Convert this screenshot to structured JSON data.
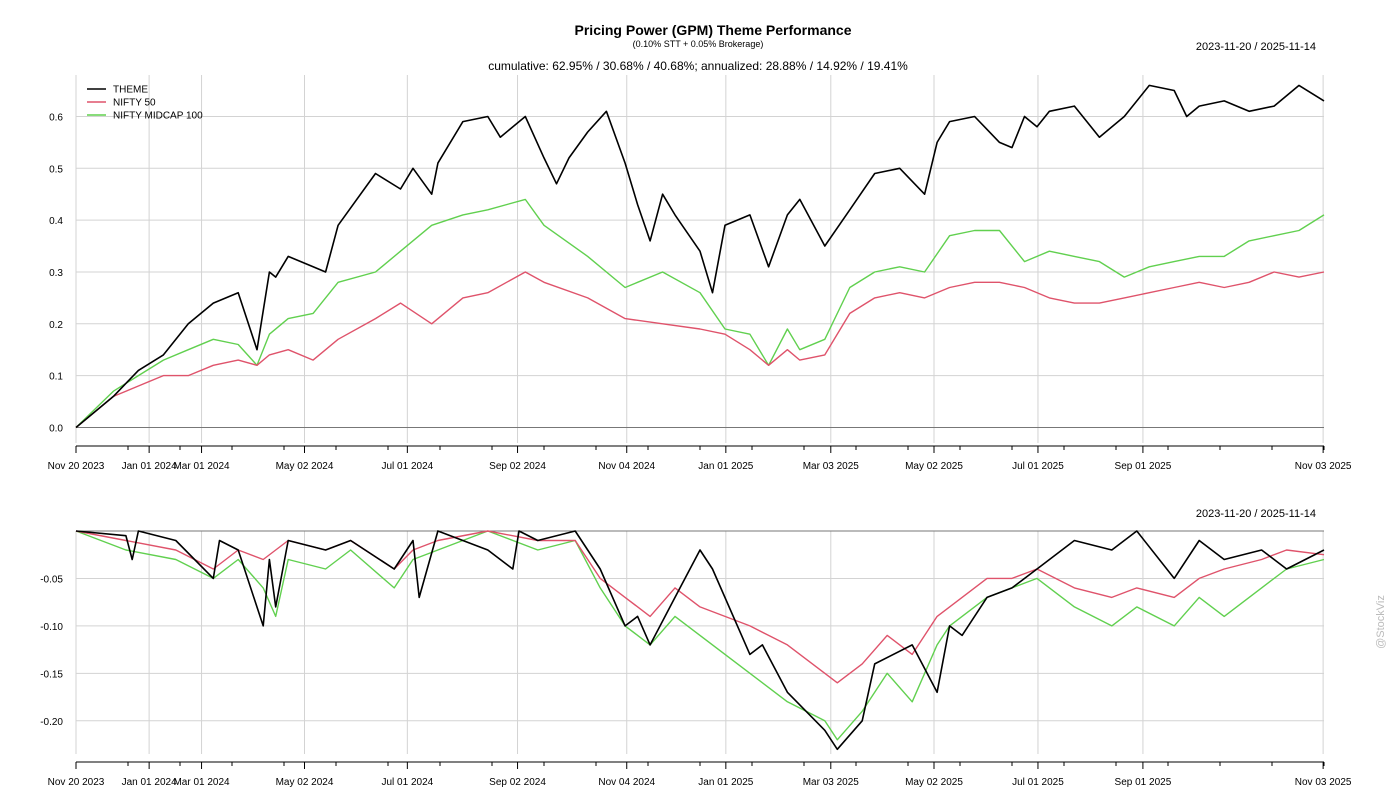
{
  "chart_data": [
    {
      "type": "line",
      "title": "Pricing Power (GPM) Theme Performance",
      "subtitle": "(0.10% STT + 0.05% Brokerage)",
      "stats": "cumulative: 62.95% / 30.68% / 40.68%; annualized: 28.88% / 14.92% / 19.41%",
      "date_range": "2023-11-20 / 2025-11-14",
      "x_ticks": [
        "Nov 20 2023",
        "Jan 01 2024",
        "Mar 01 2024",
        "May 02 2024",
        "Jul 01 2024",
        "Sep 02 2024",
        "Nov 04 2024",
        "Jan 01 2025",
        "Mar 03 2025",
        "May 02 2025",
        "Jul 01 2025",
        "Sep 01 2025",
        "Nov 03 2025"
      ],
      "x_tick_pos": [
        0,
        0.0586,
        0.1006,
        0.1831,
        0.2655,
        0.3538,
        0.4413,
        0.5207,
        0.6048,
        0.6875,
        0.7708,
        0.8549,
        0.9993
      ],
      "ylim": [
        -0.03,
        0.68
      ],
      "y_ticks": [
        0.0,
        0.1,
        0.2,
        0.3,
        0.4,
        0.5,
        0.6
      ],
      "y_tick_labels": [
        "0.0",
        "0.1",
        "0.2",
        "0.3",
        "0.4",
        "0.5",
        "0.6"
      ],
      "legend_position": "top-left",
      "series": [
        {
          "name": "THEME",
          "color": "#000000",
          "x": [
            0,
            0.03,
            0.05,
            0.07,
            0.09,
            0.11,
            0.13,
            0.145,
            0.155,
            0.16,
            0.17,
            0.19,
            0.2,
            0.21,
            0.24,
            0.26,
            0.27,
            0.285,
            0.29,
            0.31,
            0.33,
            0.34,
            0.36,
            0.375,
            0.385,
            0.395,
            0.41,
            0.425,
            0.44,
            0.45,
            0.46,
            0.47,
            0.48,
            0.5,
            0.51,
            0.52,
            0.54,
            0.555,
            0.57,
            0.58,
            0.6,
            0.62,
            0.64,
            0.66,
            0.68,
            0.69,
            0.7,
            0.72,
            0.74,
            0.75,
            0.76,
            0.77,
            0.78,
            0.8,
            0.82,
            0.84,
            0.86,
            0.88,
            0.89,
            0.9,
            0.92,
            0.94,
            0.96,
            0.98,
            1.0
          ],
          "values": [
            0,
            0.06,
            0.11,
            0.14,
            0.2,
            0.24,
            0.26,
            0.15,
            0.3,
            0.29,
            0.33,
            0.31,
            0.3,
            0.39,
            0.49,
            0.46,
            0.5,
            0.45,
            0.51,
            0.59,
            0.6,
            0.56,
            0.6,
            0.52,
            0.47,
            0.52,
            0.57,
            0.61,
            0.51,
            0.43,
            0.36,
            0.45,
            0.41,
            0.34,
            0.26,
            0.39,
            0.41,
            0.31,
            0.41,
            0.44,
            0.35,
            0.42,
            0.49,
            0.5,
            0.45,
            0.55,
            0.59,
            0.6,
            0.55,
            0.54,
            0.6,
            0.58,
            0.61,
            0.62,
            0.56,
            0.6,
            0.66,
            0.65,
            0.6,
            0.62,
            0.63,
            0.61,
            0.62,
            0.66,
            0.63
          ]
        },
        {
          "name": "NIFTY 50",
          "color": "#DF536B",
          "x": [
            0,
            0.03,
            0.05,
            0.07,
            0.09,
            0.11,
            0.13,
            0.145,
            0.155,
            0.17,
            0.19,
            0.21,
            0.24,
            0.26,
            0.285,
            0.31,
            0.33,
            0.36,
            0.375,
            0.41,
            0.44,
            0.47,
            0.5,
            0.52,
            0.54,
            0.555,
            0.57,
            0.58,
            0.6,
            0.62,
            0.64,
            0.66,
            0.68,
            0.7,
            0.72,
            0.74,
            0.76,
            0.78,
            0.8,
            0.82,
            0.84,
            0.86,
            0.88,
            0.9,
            0.92,
            0.94,
            0.96,
            0.98,
            1.0
          ],
          "values": [
            0,
            0.06,
            0.08,
            0.1,
            0.1,
            0.12,
            0.13,
            0.12,
            0.14,
            0.15,
            0.13,
            0.17,
            0.21,
            0.24,
            0.2,
            0.25,
            0.26,
            0.3,
            0.28,
            0.25,
            0.21,
            0.2,
            0.19,
            0.18,
            0.15,
            0.12,
            0.15,
            0.13,
            0.14,
            0.22,
            0.25,
            0.26,
            0.25,
            0.27,
            0.28,
            0.28,
            0.27,
            0.25,
            0.24,
            0.24,
            0.25,
            0.26,
            0.27,
            0.28,
            0.27,
            0.28,
            0.3,
            0.29,
            0.3
          ]
        },
        {
          "name": "NIFTY MIDCAP 100",
          "color": "#61D04F",
          "x": [
            0,
            0.03,
            0.05,
            0.07,
            0.09,
            0.11,
            0.13,
            0.145,
            0.155,
            0.17,
            0.19,
            0.21,
            0.24,
            0.26,
            0.285,
            0.31,
            0.33,
            0.36,
            0.375,
            0.41,
            0.44,
            0.45,
            0.47,
            0.5,
            0.52,
            0.54,
            0.555,
            0.57,
            0.58,
            0.6,
            0.62,
            0.64,
            0.66,
            0.68,
            0.7,
            0.72,
            0.74,
            0.76,
            0.78,
            0.8,
            0.82,
            0.84,
            0.86,
            0.88,
            0.9,
            0.92,
            0.94,
            0.96,
            0.98,
            1.0
          ],
          "values": [
            0,
            0.07,
            0.1,
            0.13,
            0.15,
            0.17,
            0.16,
            0.12,
            0.18,
            0.21,
            0.22,
            0.28,
            0.3,
            0.34,
            0.39,
            0.41,
            0.42,
            0.44,
            0.39,
            0.33,
            0.27,
            0.28,
            0.3,
            0.26,
            0.19,
            0.18,
            0.12,
            0.19,
            0.15,
            0.17,
            0.27,
            0.3,
            0.31,
            0.3,
            0.37,
            0.38,
            0.38,
            0.32,
            0.34,
            0.33,
            0.32,
            0.29,
            0.31,
            0.32,
            0.33,
            0.33,
            0.36,
            0.37,
            0.38,
            0.41
          ]
        }
      ]
    },
    {
      "type": "line",
      "title": "",
      "date_range": "2023-11-20 / 2025-11-14",
      "x_ticks": [
        "Nov 20 2023",
        "Jan 01 2024",
        "Mar 01 2024",
        "May 02 2024",
        "Jul 01 2024",
        "Sep 02 2024",
        "Nov 04 2024",
        "Jan 01 2025",
        "Mar 03 2025",
        "May 02 2025",
        "Jul 01 2025",
        "Sep 01 2025",
        "Nov 03 2025"
      ],
      "x_tick_pos": [
        0,
        0.0586,
        0.1006,
        0.1831,
        0.2655,
        0.3538,
        0.4413,
        0.5207,
        0.6048,
        0.6875,
        0.7708,
        0.8549,
        0.9993
      ],
      "ylim": [
        -0.235,
        0.0
      ],
      "y_ticks": [
        -0.2,
        -0.15,
        -0.1,
        -0.05
      ],
      "y_tick_labels": [
        "-0.20",
        "-0.15",
        "-0.10",
        "-0.05"
      ],
      "series": [
        {
          "name": "THEME",
          "color": "#000000",
          "x": [
            0,
            0.04,
            0.045,
            0.05,
            0.08,
            0.11,
            0.115,
            0.13,
            0.15,
            0.155,
            0.16,
            0.17,
            0.2,
            0.22,
            0.255,
            0.27,
            0.275,
            0.29,
            0.33,
            0.35,
            0.355,
            0.37,
            0.4,
            0.42,
            0.44,
            0.45,
            0.46,
            0.48,
            0.5,
            0.51,
            0.54,
            0.55,
            0.57,
            0.6,
            0.61,
            0.63,
            0.64,
            0.67,
            0.69,
            0.7,
            0.71,
            0.73,
            0.75,
            0.77,
            0.8,
            0.83,
            0.85,
            0.88,
            0.9,
            0.92,
            0.95,
            0.97,
            1.0
          ],
          "values": [
            0,
            -0.005,
            -0.03,
            0,
            -0.01,
            -0.05,
            -0.01,
            -0.02,
            -0.1,
            -0.03,
            -0.08,
            -0.01,
            -0.02,
            -0.01,
            -0.04,
            -0.01,
            -0.07,
            0,
            -0.02,
            -0.04,
            0,
            -0.01,
            0,
            -0.04,
            -0.1,
            -0.09,
            -0.12,
            -0.07,
            -0.02,
            -0.04,
            -0.13,
            -0.12,
            -0.17,
            -0.21,
            -0.23,
            -0.2,
            -0.14,
            -0.12,
            -0.17,
            -0.1,
            -0.11,
            -0.07,
            -0.06,
            -0.04,
            -0.01,
            -0.02,
            0,
            -0.05,
            -0.01,
            -0.03,
            -0.02,
            -0.04,
            -0.02
          ]
        },
        {
          "name": "NIFTY 50",
          "color": "#DF536B",
          "x": [
            0,
            0.04,
            0.08,
            0.11,
            0.13,
            0.15,
            0.17,
            0.2,
            0.22,
            0.255,
            0.27,
            0.29,
            0.33,
            0.37,
            0.4,
            0.42,
            0.44,
            0.46,
            0.48,
            0.5,
            0.54,
            0.57,
            0.6,
            0.61,
            0.63,
            0.65,
            0.67,
            0.69,
            0.7,
            0.73,
            0.75,
            0.77,
            0.8,
            0.83,
            0.85,
            0.88,
            0.9,
            0.92,
            0.95,
            0.97,
            1.0
          ],
          "values": [
            0,
            -0.01,
            -0.02,
            -0.04,
            -0.02,
            -0.03,
            -0.01,
            -0.02,
            -0.01,
            -0.04,
            -0.02,
            -0.01,
            0,
            -0.01,
            -0.01,
            -0.05,
            -0.07,
            -0.09,
            -0.06,
            -0.08,
            -0.1,
            -0.12,
            -0.15,
            -0.16,
            -0.14,
            -0.11,
            -0.13,
            -0.09,
            -0.08,
            -0.05,
            -0.05,
            -0.04,
            -0.06,
            -0.07,
            -0.06,
            -0.07,
            -0.05,
            -0.04,
            -0.03,
            -0.02,
            -0.025
          ]
        },
        {
          "name": "NIFTY MIDCAP 100",
          "color": "#61D04F",
          "x": [
            0,
            0.04,
            0.08,
            0.11,
            0.13,
            0.15,
            0.16,
            0.17,
            0.2,
            0.22,
            0.255,
            0.27,
            0.29,
            0.33,
            0.37,
            0.4,
            0.42,
            0.44,
            0.46,
            0.48,
            0.5,
            0.54,
            0.57,
            0.6,
            0.61,
            0.63,
            0.65,
            0.67,
            0.69,
            0.7,
            0.73,
            0.75,
            0.77,
            0.8,
            0.83,
            0.85,
            0.88,
            0.9,
            0.92,
            0.95,
            0.97,
            1.0
          ],
          "values": [
            0,
            -0.02,
            -0.03,
            -0.05,
            -0.03,
            -0.06,
            -0.09,
            -0.03,
            -0.04,
            -0.02,
            -0.06,
            -0.03,
            -0.02,
            0,
            -0.02,
            -0.01,
            -0.06,
            -0.1,
            -0.12,
            -0.09,
            -0.11,
            -0.15,
            -0.18,
            -0.2,
            -0.22,
            -0.19,
            -0.15,
            -0.18,
            -0.12,
            -0.1,
            -0.07,
            -0.06,
            -0.05,
            -0.08,
            -0.1,
            -0.08,
            -0.1,
            -0.07,
            -0.09,
            -0.06,
            -0.04,
            -0.03
          ]
        }
      ]
    }
  ],
  "watermark": "@StockViz"
}
